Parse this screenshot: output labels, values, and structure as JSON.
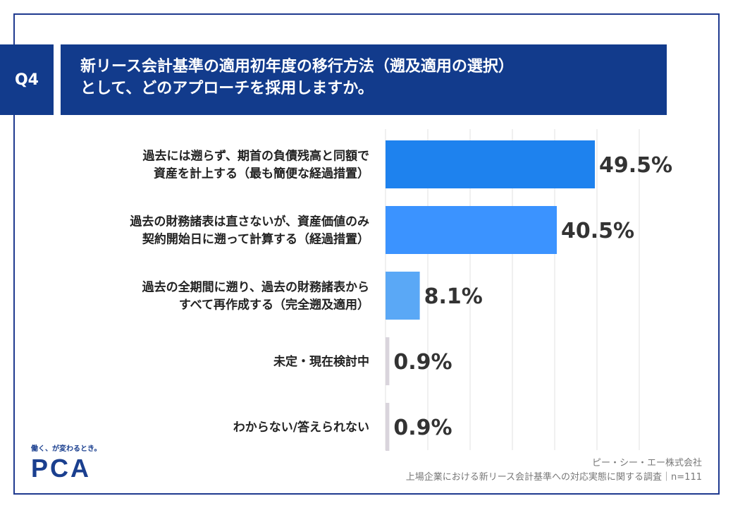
{
  "header": {
    "q_label": "Q4",
    "title_line1": "新リース会計基準の適用初年度の移行方法（遡及適用の選択）",
    "title_line2": "として、どのアプローチを採用しますか。"
  },
  "chart_data": {
    "type": "bar",
    "orientation": "horizontal",
    "categories": [
      [
        "過去には遡らず、期首の負債残高と同額で",
        "資産を計上する（最も簡便な経過措置）"
      ],
      [
        "過去の財務諸表は直さないが、資産価値のみ",
        "契約開始日に遡って計算する（経過措置）"
      ],
      [
        "過去の全期間に遡り、過去の財務諸表から",
        "すべて再作成する（完全遡及適用）"
      ],
      [
        "未定・現在検討中"
      ],
      [
        "わからない/答えられない"
      ]
    ],
    "values": [
      49.5,
      40.5,
      8.1,
      0.9,
      0.9
    ],
    "value_labels": [
      "49.5%",
      "40.5%",
      "8.1%",
      "0.9%",
      "0.9%"
    ],
    "xlim": [
      0,
      60
    ],
    "grid": true,
    "bar_colors": [
      "#1e82ee",
      "#3b93ff",
      "#5aa8f6",
      "#d9d4dc",
      "#d9d4dc"
    ]
  },
  "footer": {
    "logo_tagline": "働く、が変わるとき。",
    "logo_text": "PCA",
    "source_company": "ピー・シー・エー株式会社",
    "source_survey": "上場企業における新リース会計基準への対応実態に関する調査｜n=111"
  }
}
